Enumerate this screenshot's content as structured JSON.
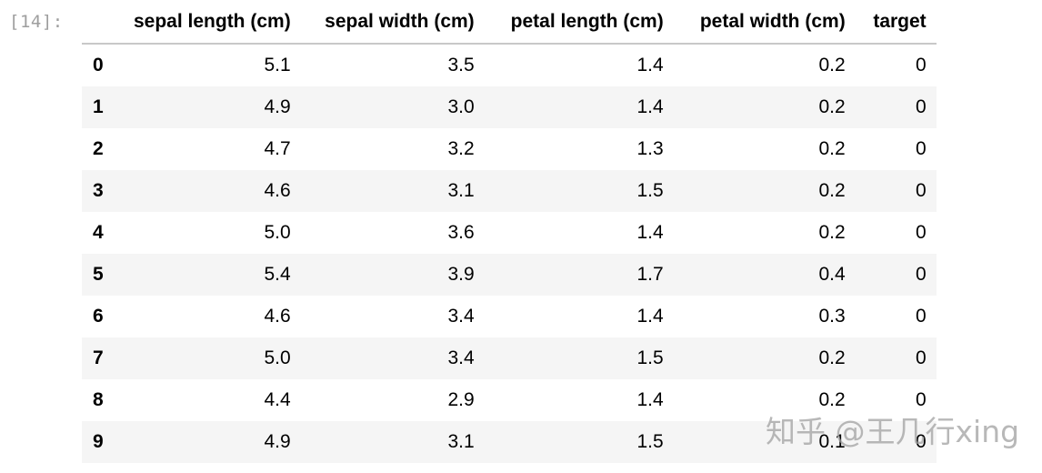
{
  "cell": {
    "prompt": "[14]:"
  },
  "dataframe": {
    "columns": [
      "sepal length (cm)",
      "sepal width (cm)",
      "petal length (cm)",
      "petal width (cm)",
      "target"
    ],
    "rows": [
      {
        "index": "0",
        "values": [
          "5.1",
          "3.5",
          "1.4",
          "0.2",
          "0"
        ]
      },
      {
        "index": "1",
        "values": [
          "4.9",
          "3.0",
          "1.4",
          "0.2",
          "0"
        ]
      },
      {
        "index": "2",
        "values": [
          "4.7",
          "3.2",
          "1.3",
          "0.2",
          "0"
        ]
      },
      {
        "index": "3",
        "values": [
          "4.6",
          "3.1",
          "1.5",
          "0.2",
          "0"
        ]
      },
      {
        "index": "4",
        "values": [
          "5.0",
          "3.6",
          "1.4",
          "0.2",
          "0"
        ]
      },
      {
        "index": "5",
        "values": [
          "5.4",
          "3.9",
          "1.7",
          "0.4",
          "0"
        ]
      },
      {
        "index": "6",
        "values": [
          "4.6",
          "3.4",
          "1.4",
          "0.3",
          "0"
        ]
      },
      {
        "index": "7",
        "values": [
          "5.0",
          "3.4",
          "1.5",
          "0.2",
          "0"
        ]
      },
      {
        "index": "8",
        "values": [
          "4.4",
          "2.9",
          "1.4",
          "0.2",
          "0"
        ]
      },
      {
        "index": "9",
        "values": [
          "4.9",
          "3.1",
          "1.5",
          "0.1",
          "0"
        ]
      }
    ]
  },
  "watermark": {
    "text": "知乎 @王几行xing"
  },
  "colors": {
    "prompt": "#9e9e9e",
    "striped_row": "#f5f5f5",
    "header_rule": "#c8c8c8"
  }
}
